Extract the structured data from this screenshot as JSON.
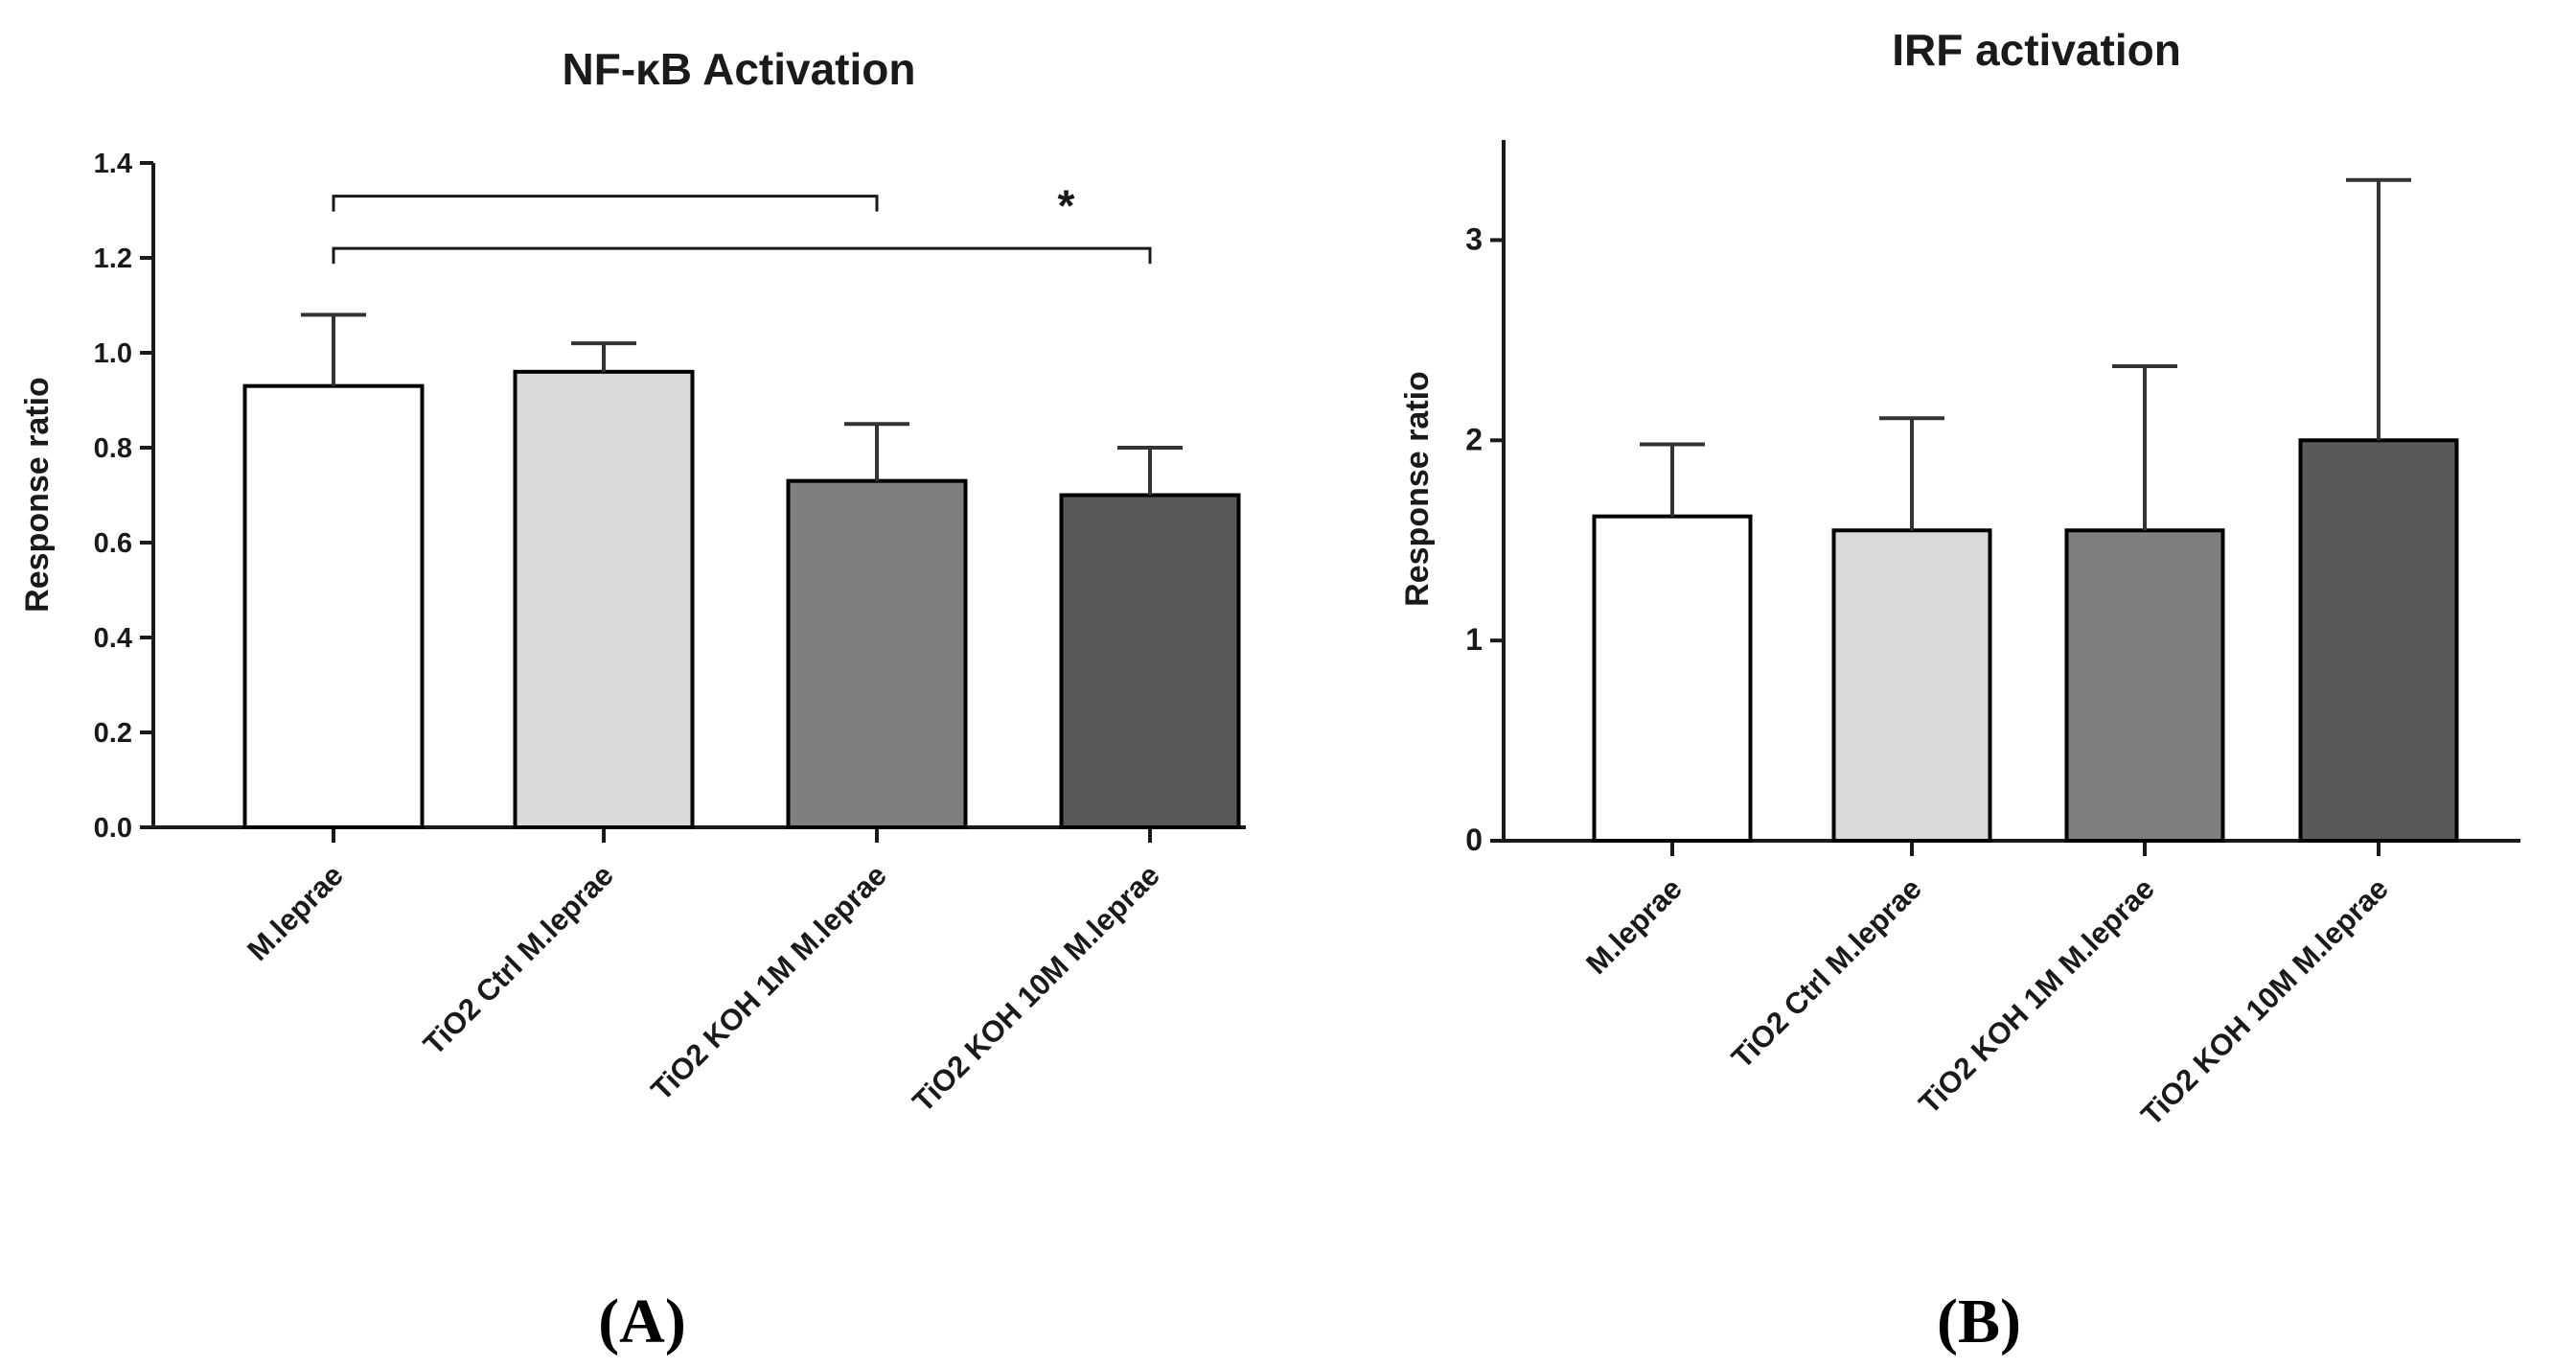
{
  "chart_data": [
    {
      "type": "bar",
      "panel_label": "(A)",
      "title": "NF-κB Activation",
      "xlabel": "",
      "ylabel": "Response ratio",
      "ylim": [
        0,
        1.4
      ],
      "yticks": [
        "0.0",
        "0.2",
        "0.4",
        "0.6",
        "0.8",
        "1.0",
        "1.2",
        "1.4"
      ],
      "categories": [
        "M.leprae",
        "TiO2 Ctrl M.leprae",
        "TiO2 KOH 1M M.leprae",
        "TiO2 KOH 10M M.leprae"
      ],
      "values": [
        0.93,
        0.96,
        0.73,
        0.7
      ],
      "errors": [
        0.15,
        0.06,
        0.12,
        0.1
      ],
      "colors": [
        "#ffffff",
        "#d9d9d9",
        "#7f7f7f",
        "#595959"
      ],
      "grid": false,
      "significance": [
        {
          "from": 0,
          "to": 2,
          "label": ""
        },
        {
          "from": 0,
          "to": 3,
          "label": "*"
        }
      ]
    },
    {
      "type": "bar",
      "panel_label": "(B)",
      "title": "IRF activation",
      "xlabel": "",
      "ylabel": "Response ratio",
      "ylim": [
        0,
        3.5
      ],
      "yticks": [
        "0",
        "1",
        "2",
        "3"
      ],
      "categories": [
        "M.leprae",
        "TiO2 Ctrl M.leprae",
        "TiO2 KOH 1M M.leprae",
        "TiO2 KOH 10M M.leprae"
      ],
      "values": [
        1.62,
        1.55,
        1.55,
        2.0
      ],
      "errors": [
        0.36,
        0.56,
        0.82,
        1.3
      ],
      "colors": [
        "#ffffff",
        "#d9d9d9",
        "#7f7f7f",
        "#595959"
      ],
      "grid": false,
      "significance": []
    }
  ]
}
